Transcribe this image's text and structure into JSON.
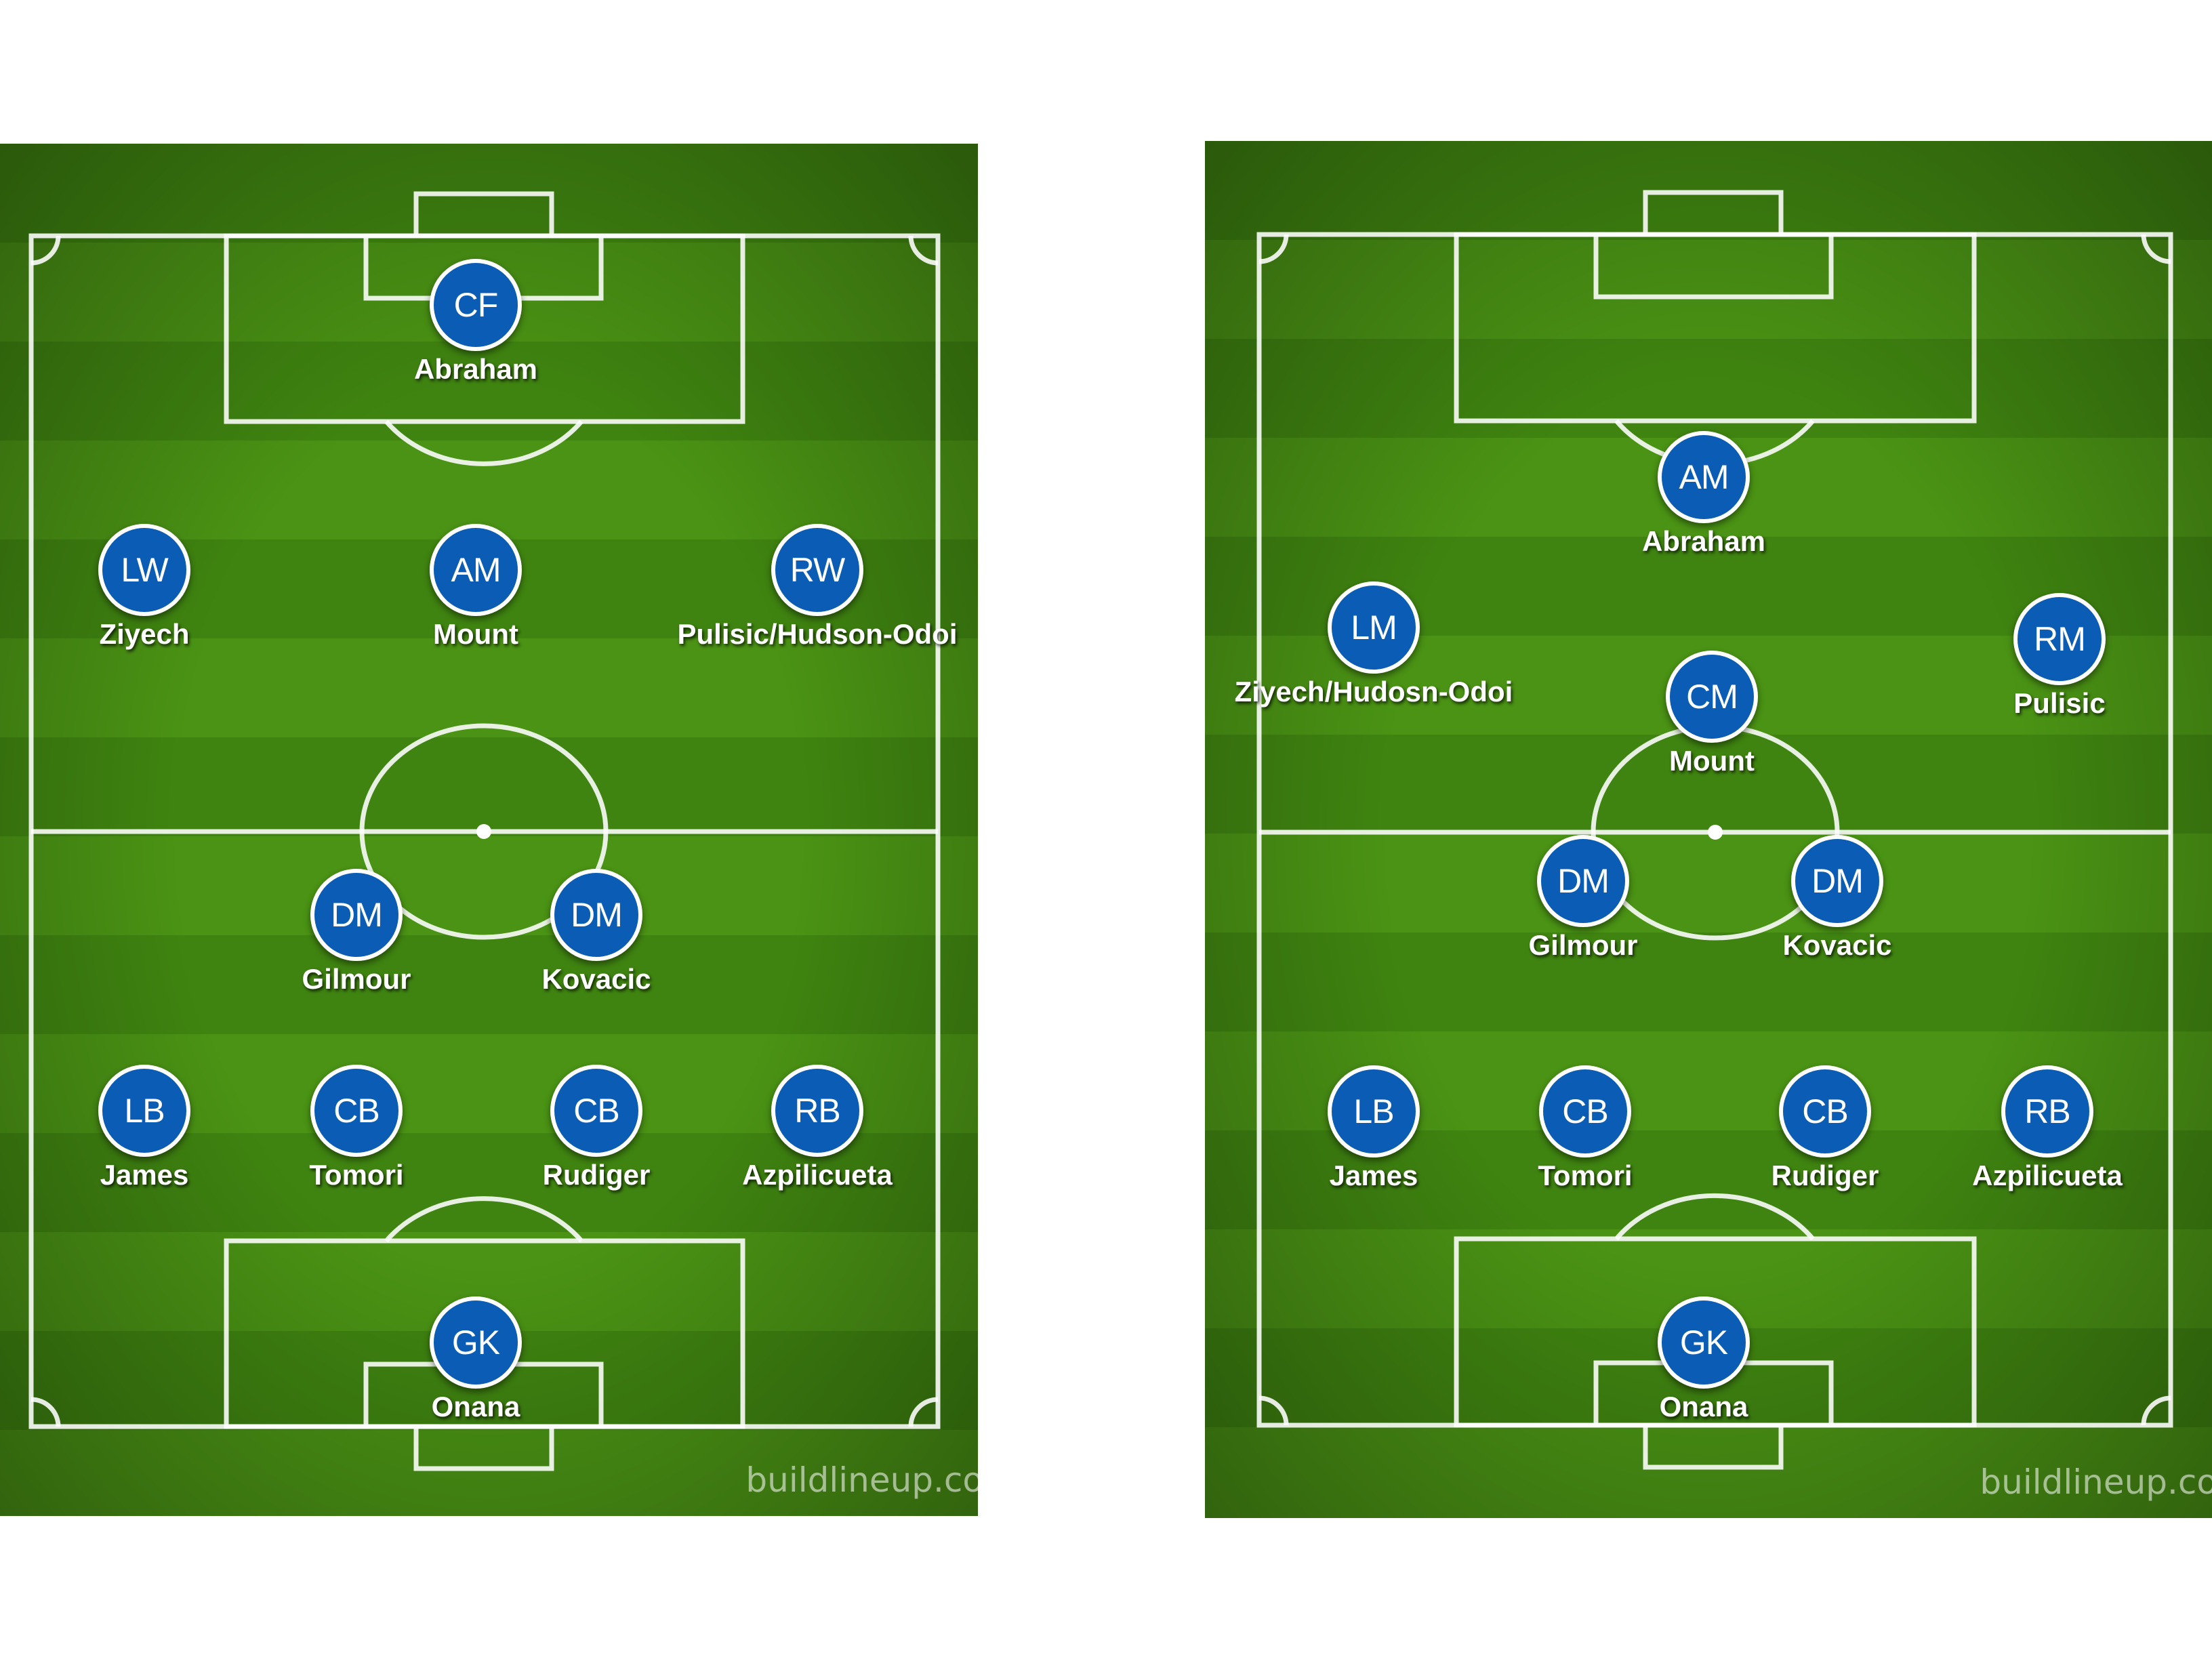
{
  "watermark": "buildlineup.co",
  "colors": {
    "pitch_dark": "#3f8410",
    "pitch_light": "#4a9314",
    "player_disc": "#0b5cb4",
    "line": "#ffffff"
  },
  "lineups": [
    {
      "players": [
        {
          "pos": "CF",
          "name": "Abraham"
        },
        {
          "pos": "LW",
          "name": "Ziyech"
        },
        {
          "pos": "AM",
          "name": "Mount"
        },
        {
          "pos": "RW",
          "name": "Pulisic/Hudson-Odoi"
        },
        {
          "pos": "DM",
          "name": "Gilmour"
        },
        {
          "pos": "DM",
          "name": "Kovacic"
        },
        {
          "pos": "LB",
          "name": "James"
        },
        {
          "pos": "CB",
          "name": "Tomori"
        },
        {
          "pos": "CB",
          "name": "Rudiger"
        },
        {
          "pos": "RB",
          "name": "Azpilicueta"
        },
        {
          "pos": "GK",
          "name": "Onana"
        }
      ]
    },
    {
      "players": [
        {
          "pos": "AM",
          "name": "Abraham"
        },
        {
          "pos": "LM",
          "name": "Ziyech/Hudosn-Odoi"
        },
        {
          "pos": "RM",
          "name": "Pulisic"
        },
        {
          "pos": "CM",
          "name": "Mount"
        },
        {
          "pos": "DM",
          "name": "Gilmour"
        },
        {
          "pos": "DM",
          "name": "Kovacic"
        },
        {
          "pos": "LB",
          "name": "James"
        },
        {
          "pos": "CB",
          "name": "Tomori"
        },
        {
          "pos": "CB",
          "name": "Rudiger"
        },
        {
          "pos": "RB",
          "name": "Azpilicueta"
        },
        {
          "pos": "GK",
          "name": "Onana"
        }
      ]
    }
  ]
}
